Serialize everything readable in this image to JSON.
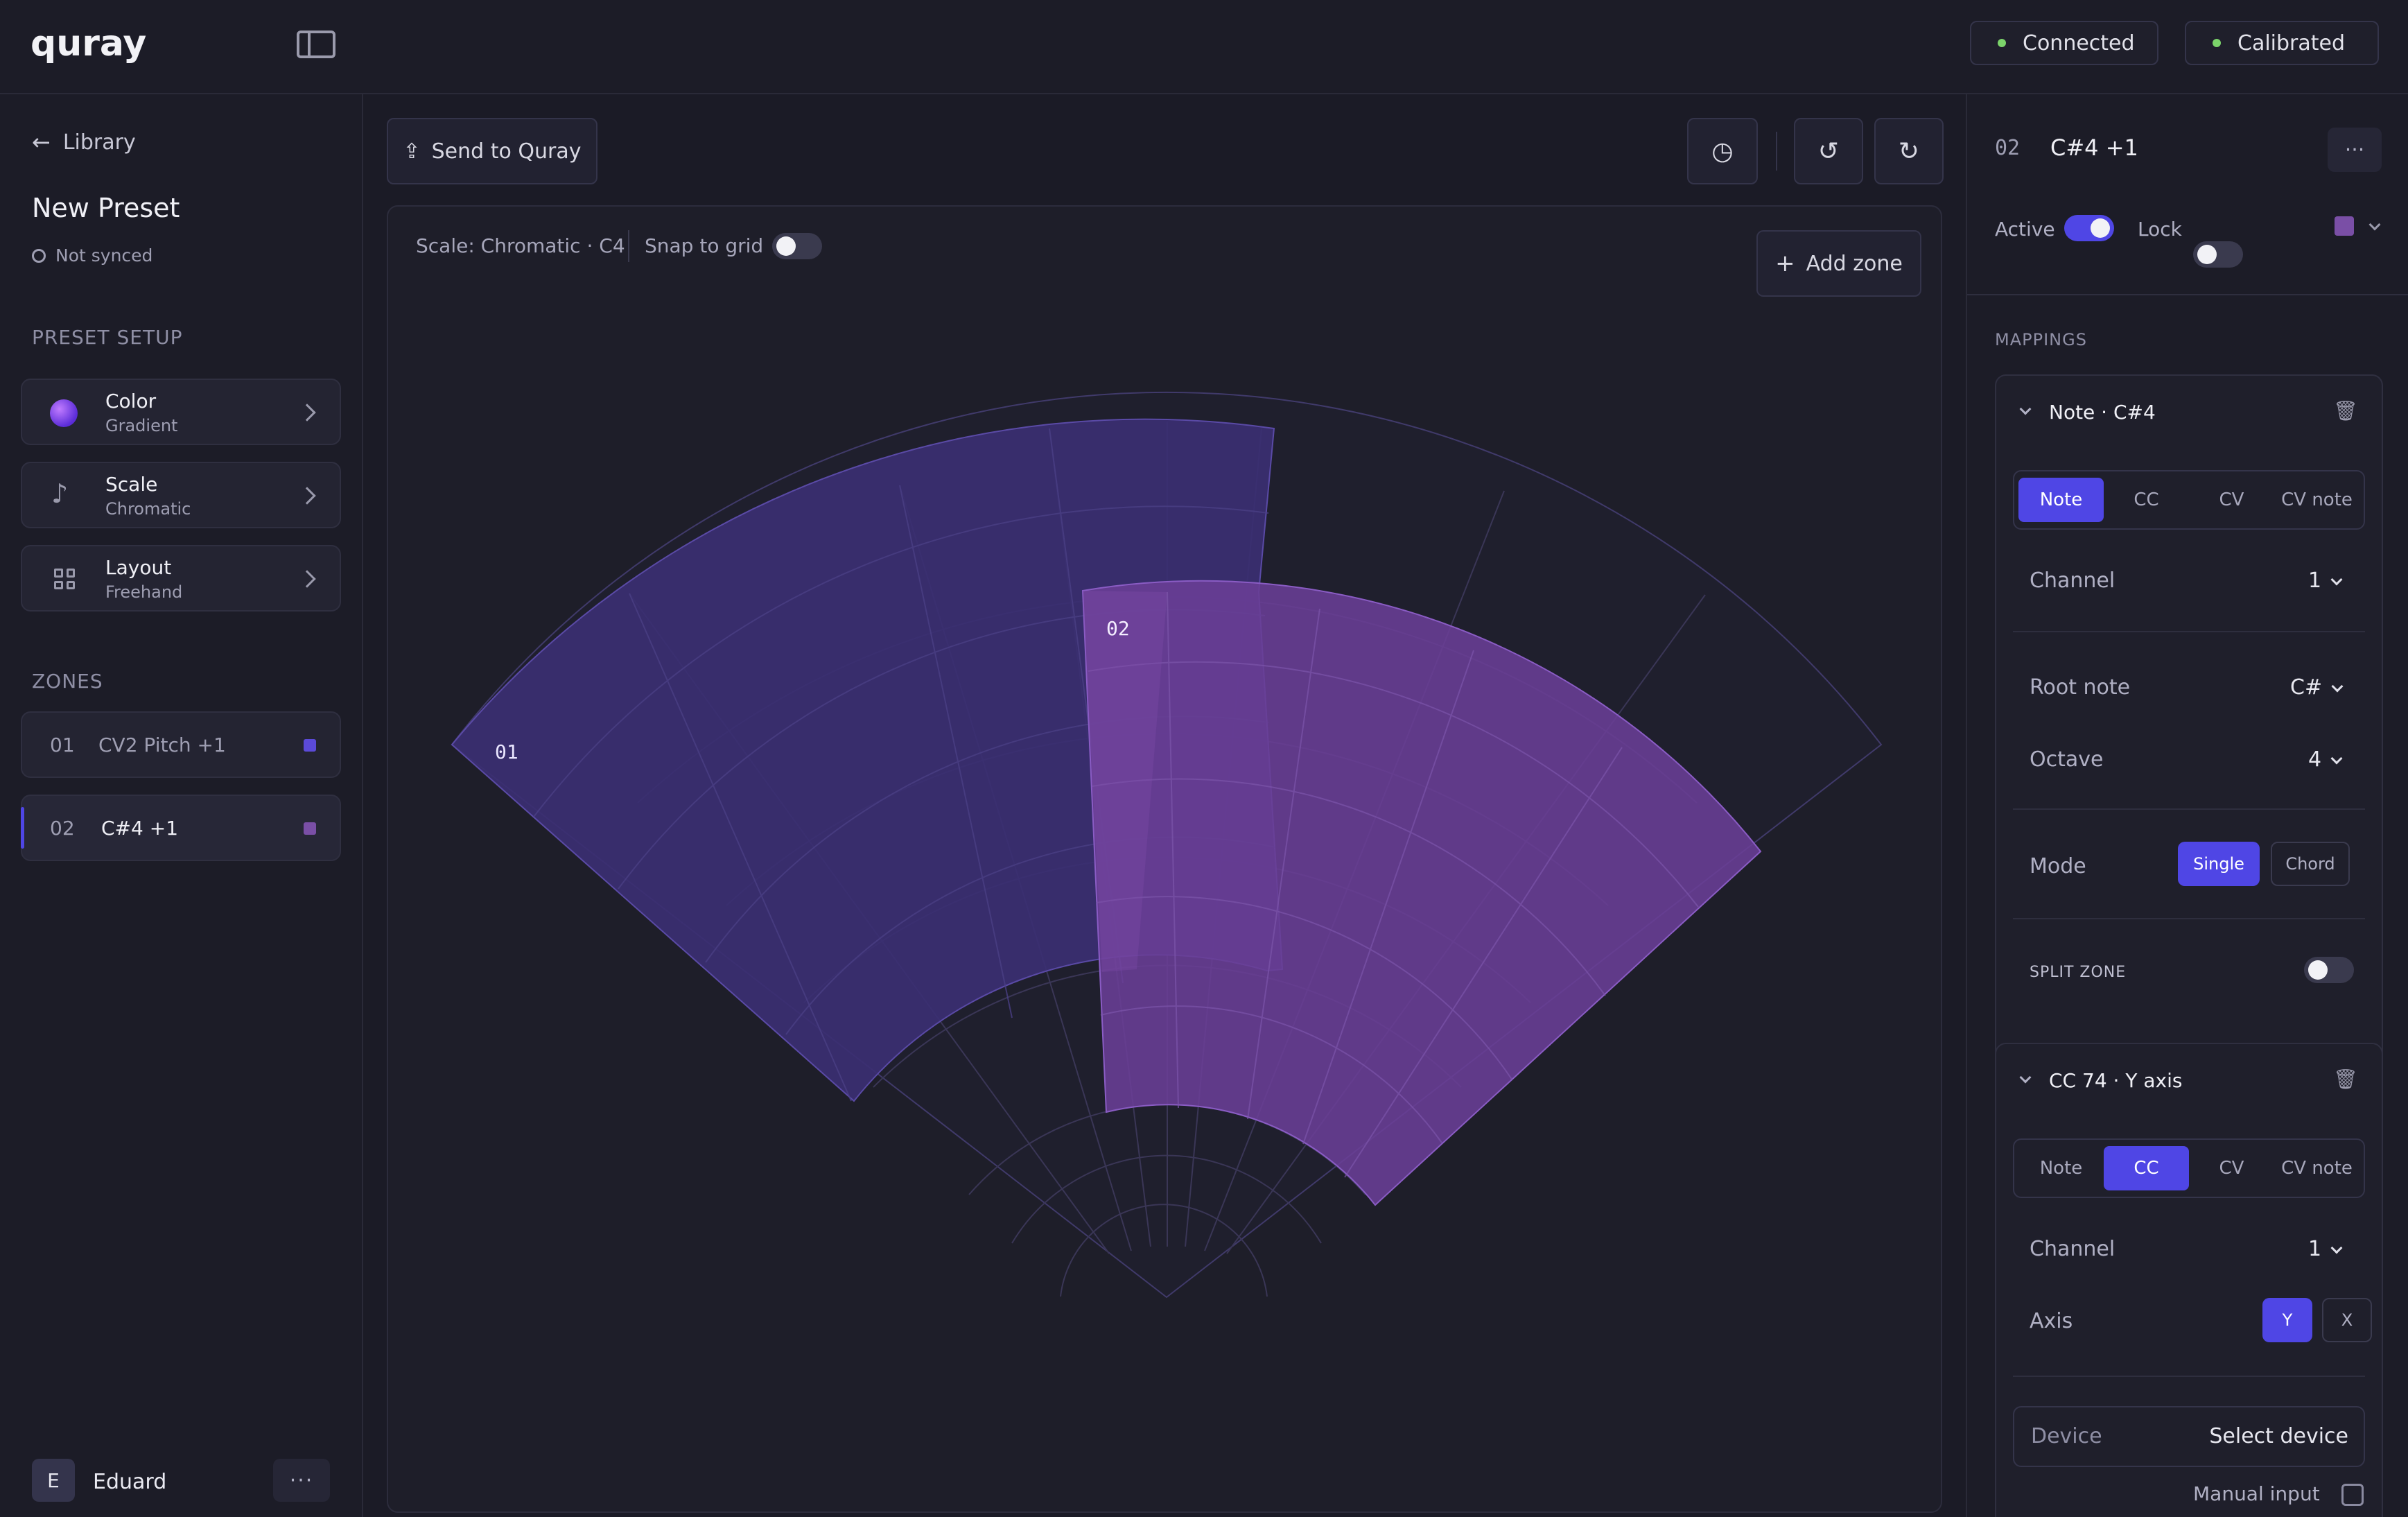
{
  "app": {
    "logo": "quray"
  },
  "status": {
    "connected": "Connected",
    "calibrated": "Calibrated",
    "dot_color": "#7bd36a"
  },
  "sidebar": {
    "back_label": "Library",
    "preset_title": "New Preset",
    "sync_status": "Not synced",
    "setup_heading": "PRESET SETUP",
    "setup_items": [
      {
        "title": "Color",
        "subtitle": "Gradient",
        "icon": "color-dot-icon"
      },
      {
        "title": "Scale",
        "subtitle": "Chromatic",
        "icon": "music-note-icon"
      },
      {
        "title": "Layout",
        "subtitle": "Freehand",
        "icon": "grid-icon"
      }
    ],
    "zones_heading": "ZONES",
    "zones": [
      {
        "num": "01",
        "name": "CV2 Pitch +1",
        "color": "#5b4ad8"
      },
      {
        "num": "02",
        "name": "C#4 +1",
        "color": "#7a4fa6"
      }
    ],
    "user": {
      "initial": "E",
      "name": "Eduard"
    }
  },
  "main": {
    "send_label": "Send to Quray",
    "scale_info": "Scale: Chromatic · C4",
    "snap_label": "Snap to grid",
    "add_zone_label": "Add zone",
    "zone_labels": [
      "01",
      "02"
    ],
    "accent": "#4f46e5",
    "zone1_color": "#3b2f72",
    "zone2_color": "#6a3f96"
  },
  "inspector": {
    "zone_num": "02",
    "zone_name": "C#4 +1",
    "active_label": "Active",
    "lock_label": "Lock",
    "mappings_heading": "MAPPINGS",
    "mapping1": {
      "title": "Note · C#4",
      "tabs": [
        "Note",
        "CC",
        "CV",
        "CV note"
      ],
      "selected": "Note",
      "channel_label": "Channel",
      "channel_value": "1",
      "root_label": "Root note",
      "root_value": "C#",
      "octave_label": "Octave",
      "octave_value": "4",
      "mode_label": "Mode",
      "mode_single": "Single",
      "mode_chord": "Chord",
      "split_label": "SPLIT ZONE"
    },
    "mapping2": {
      "title": "CC 74 · Y axis",
      "tabs": [
        "Note",
        "CC",
        "CV",
        "CV note"
      ],
      "selected": "CC",
      "channel_label": "Channel",
      "channel_value": "1",
      "axis_label": "Axis",
      "axis_y": "Y",
      "axis_x": "X",
      "device_label": "Device",
      "device_value": "Select device",
      "manual_label": "Manual input"
    }
  }
}
